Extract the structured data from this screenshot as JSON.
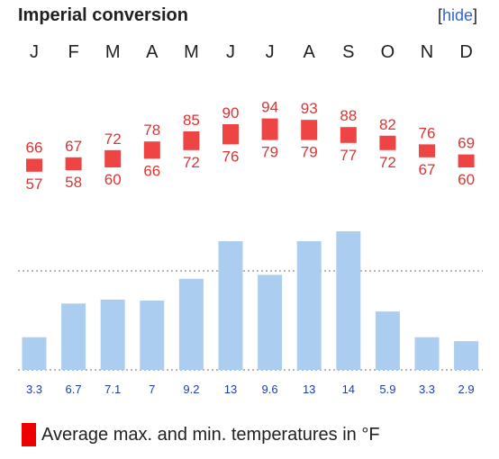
{
  "header": {
    "title": "Imperial conversion",
    "hide_open": "[",
    "hide_label": "hide",
    "hide_close": "]"
  },
  "legend": {
    "label": "Average max. and min. temperatures in °F"
  },
  "colors": {
    "temp_bar": "#ee4444",
    "temp_text": "#dd3333",
    "precip_bar": "#abcdef",
    "precip_text": "#1d3cb0",
    "gridline": "#aa9988"
  },
  "chart_data": [
    {
      "type": "bar",
      "categories": [
        "J",
        "F",
        "M",
        "A",
        "M",
        "J",
        "J",
        "A",
        "S",
        "O",
        "N",
        "D"
      ],
      "series": [
        {
          "name": "max",
          "values": [
            66,
            67,
            72,
            78,
            85,
            90,
            94,
            93,
            88,
            82,
            76,
            69
          ]
        },
        {
          "name": "min",
          "values": [
            57,
            58,
            60,
            66,
            72,
            76,
            79,
            79,
            77,
            72,
            67,
            60
          ]
        }
      ],
      "legend": "Average max. and min. temperatures in °F",
      "ylim": [
        40,
        100
      ]
    },
    {
      "type": "bar",
      "categories": [
        "J",
        "F",
        "M",
        "A",
        "M",
        "J",
        "J",
        "A",
        "S",
        "O",
        "N",
        "D"
      ],
      "values": [
        3.3,
        6.7,
        7.1,
        7,
        9.2,
        13,
        9.6,
        13,
        14,
        5.9,
        3.3,
        2.9
      ],
      "labels": [
        "3.3",
        "6.7",
        "7.1",
        "7",
        "9.2",
        "13",
        "9.6",
        "13",
        "14",
        "5.9",
        "3.3",
        "2.9"
      ],
      "ylim": [
        0,
        17.5
      ],
      "grid_values": [
        10,
        0
      ]
    }
  ]
}
